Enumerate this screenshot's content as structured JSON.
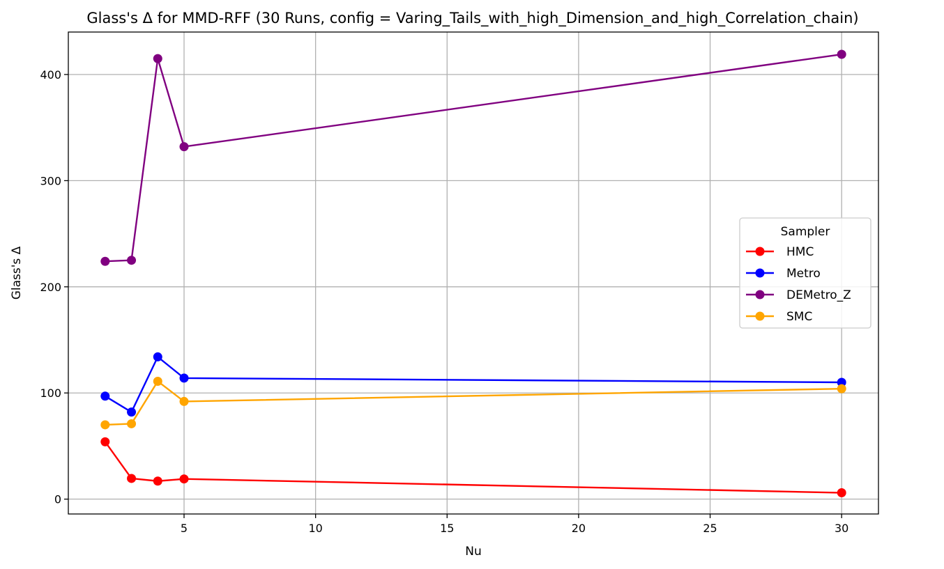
{
  "chart_data": {
    "type": "line",
    "title": "Glass's Δ for MMD-RFF (30 Runs, config = Varing_Tails_with_high_Dimension_and_high_Correlation_chain)",
    "xlabel": "Nu",
    "ylabel": "Glass's Δ",
    "xlim": [
      0.6,
      31.4
    ],
    "ylim": [
      -14,
      440
    ],
    "xticks": [
      5,
      10,
      15,
      20,
      25,
      30
    ],
    "yticks": [
      0,
      100,
      200,
      300,
      400
    ],
    "grid": true,
    "legend": {
      "title": "Sampler",
      "placement": "center-right"
    },
    "x": [
      2,
      3,
      4,
      5,
      30
    ],
    "series": [
      {
        "name": "HMC",
        "color": "#ff0000",
        "values": [
          54,
          19.5,
          17,
          19,
          6
        ]
      },
      {
        "name": "Metro",
        "color": "#0000ff",
        "values": [
          97,
          82,
          134,
          114,
          110
        ]
      },
      {
        "name": "DEMetro_Z",
        "color": "#800080",
        "values": [
          224,
          225,
          415,
          332,
          419
        ]
      },
      {
        "name": "SMC",
        "color": "#ffa500",
        "values": [
          70,
          71,
          111,
          92,
          104
        ]
      }
    ]
  }
}
